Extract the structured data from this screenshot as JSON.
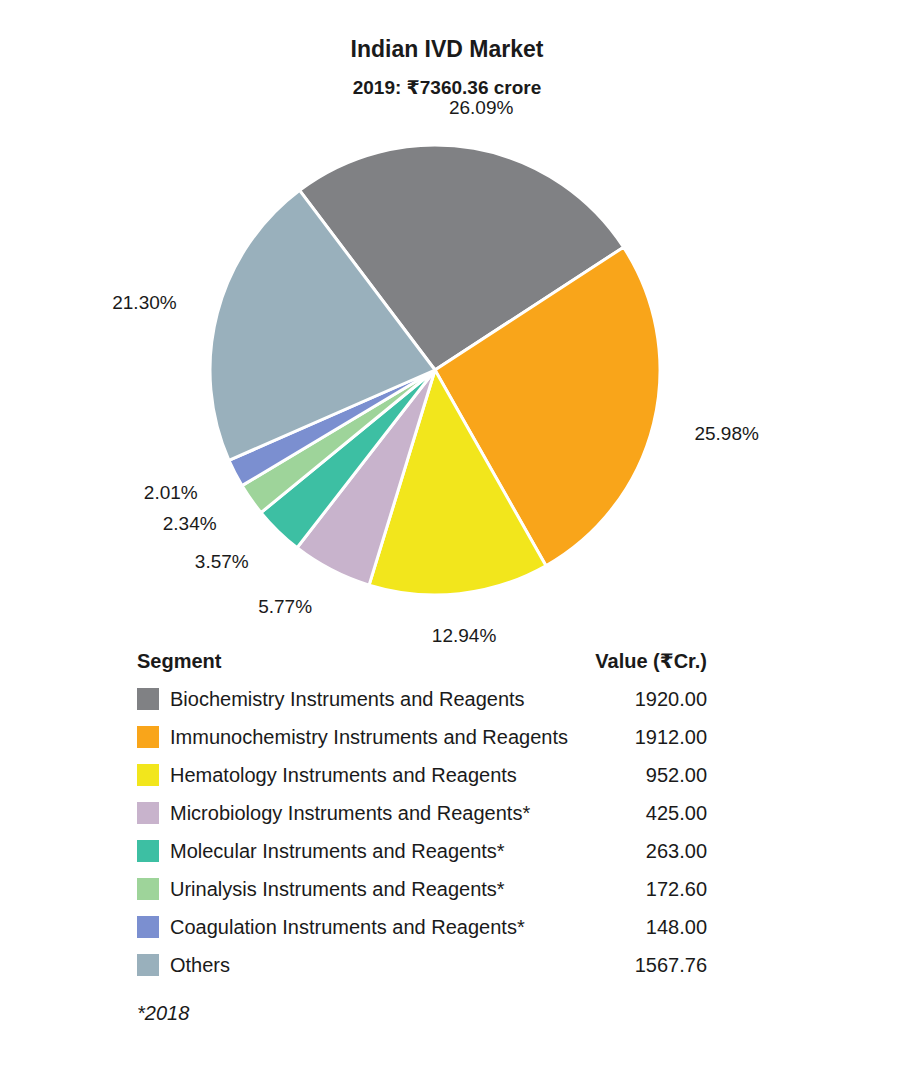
{
  "chart_data": {
    "type": "pie",
    "title": "Indian IVD Market",
    "subtitle": "2019: ₹7360.36 crore",
    "categories": [
      "Biochemistry Instruments and Reagents",
      "Immunochemistry Instruments and Reagents",
      "Hematology Instruments and Reagents",
      "Microbiology Instruments and Reagents*",
      "Molecular Instruments and Reagents*",
      "Urinalysis Instruments and Reagents*",
      "Coagulation Instruments and Reagents*",
      "Others"
    ],
    "values": [
      26.09,
      25.98,
      12.94,
      5.77,
      3.57,
      2.34,
      2.01,
      21.3
    ],
    "value_labels": [
      "26.09%",
      "25.98%",
      "12.94%",
      "5.77%",
      "3.57%",
      "2.34%",
      "2.01%",
      "21.30%"
    ],
    "data_labels": true,
    "colors": [
      "#808184",
      "#f9a51a",
      "#f2e61c",
      "#c8b3cc",
      "#3dbfa3",
      "#9ed49a",
      "#7b8fd0",
      "#99b0bc"
    ],
    "table_header": [
      "Segment",
      "Value (₹Cr.)"
    ],
    "table_values": [
      "1920.00",
      "1912.00",
      "952.00",
      "425.00",
      "263.00",
      "172.60",
      "148.00",
      "1567.76"
    ],
    "footnote": "*2018"
  }
}
